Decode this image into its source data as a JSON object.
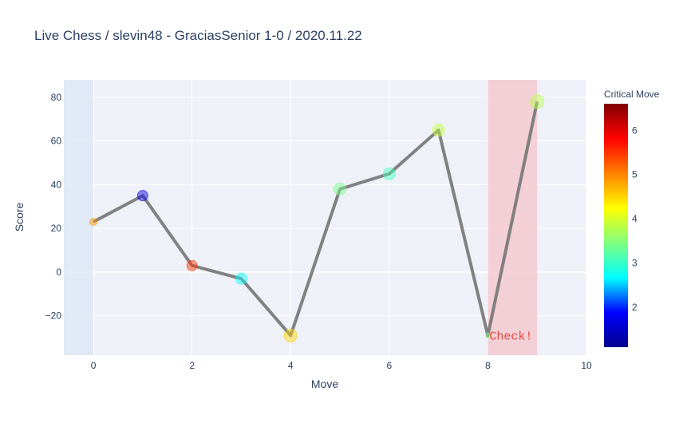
{
  "chart_data": {
    "type": "line",
    "title": "Live Chess / slevin48 - GraciasSenior  1-0 / 2020.11.22",
    "xlabel": "Move",
    "ylabel": "Score",
    "xlim": [
      -0.6,
      10
    ],
    "ylim": [
      -38,
      88
    ],
    "x_ticks": [
      0,
      2,
      4,
      6,
      8,
      10
    ],
    "y_ticks": [
      -20,
      0,
      20,
      40,
      60,
      80
    ],
    "grid": true,
    "x": [
      0,
      1,
      2,
      3,
      4,
      5,
      6,
      7,
      8,
      9
    ],
    "series": [
      {
        "values": [
          23,
          35,
          3,
          -3,
          -29,
          38,
          45,
          65,
          -29,
          78
        ],
        "line_color": "#7a7a7a",
        "marker_values": [
          4.9,
          1.7,
          5.5,
          2.7,
          4.5,
          3.4,
          3.1,
          3.9,
          3.5,
          3.8
        ],
        "marker_sizes": [
          9,
          13,
          13,
          14,
          16,
          15,
          15,
          15,
          6,
          17
        ]
      }
    ],
    "colorbar": {
      "title": "Critical Move",
      "range": [
        1.1,
        6.6
      ],
      "ticks": [
        2,
        3,
        4,
        5,
        6
      ],
      "colorscale": [
        "#00008f",
        "#0000ff",
        "#00ffff",
        "#80ff80",
        "#ffff00",
        "#ff8000",
        "#ff0000",
        "#800000"
      ]
    },
    "shaded_regions": [
      {
        "x0": -0.6,
        "x1": 0,
        "color": "#dbe6f5"
      },
      {
        "x0": 8,
        "x1": 9,
        "color": "#f4c3cb"
      }
    ],
    "annotations": [
      {
        "text": "Check!",
        "x": 8,
        "y": -29,
        "color": "#e8453c"
      }
    ]
  }
}
